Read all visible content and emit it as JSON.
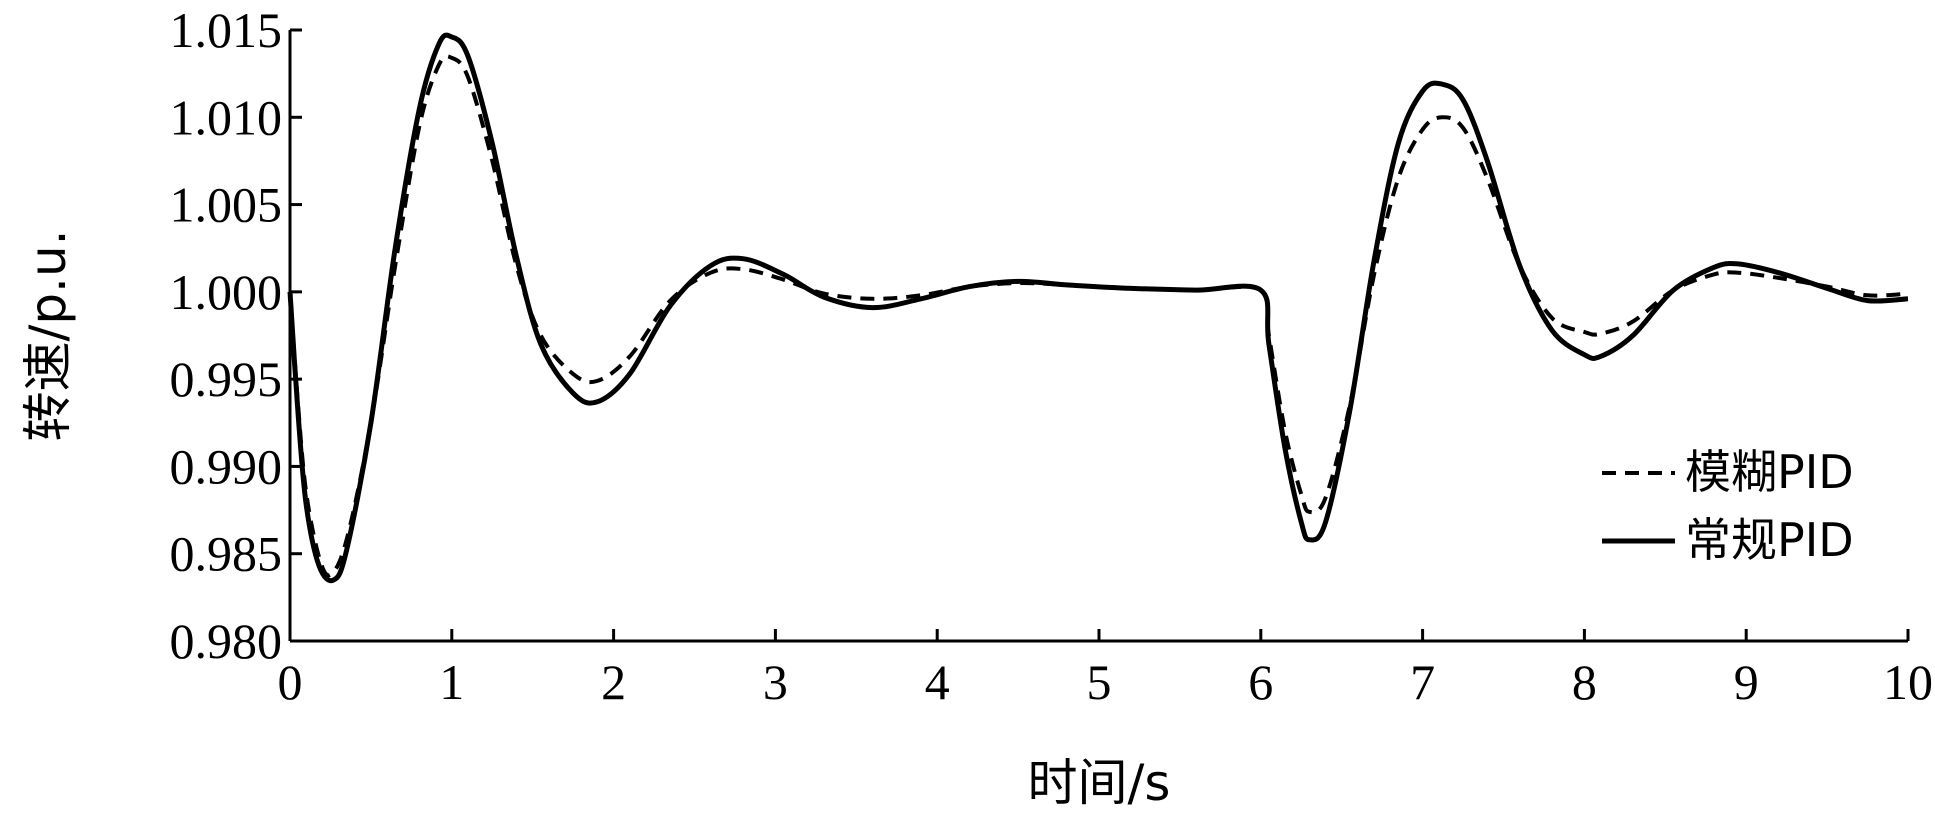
{
  "chart_data": {
    "type": "line",
    "title": "",
    "xlabel": "时间/s",
    "ylabel": "转速/p.u.",
    "xlim": [
      0,
      10
    ],
    "ylim": [
      0.98,
      1.015
    ],
    "xticks": [
      0,
      1,
      2,
      3,
      4,
      5,
      6,
      7,
      8,
      9,
      10
    ],
    "yticks": [
      0.98,
      0.985,
      0.99,
      0.995,
      1.0,
      1.005,
      1.01,
      1.015
    ],
    "xtick_labels": [
      "0",
      "1",
      "2",
      "3",
      "4",
      "5",
      "6",
      "7",
      "8",
      "9",
      "10"
    ],
    "ytick_labels": [
      "0.980",
      "0.985",
      "0.990",
      "0.995",
      "1.000",
      "1.005",
      "1.010",
      "1.015"
    ],
    "grid": false,
    "legend_position": "right",
    "series": [
      {
        "name": "模糊PID",
        "style": "dashed",
        "color": "#000000",
        "points": [
          [
            0.0,
            1.0
          ],
          [
            0.05,
            0.9935
          ],
          [
            0.1,
            0.9885
          ],
          [
            0.18,
            0.9848
          ],
          [
            0.25,
            0.9838
          ],
          [
            0.35,
            0.9858
          ],
          [
            0.5,
            0.9925
          ],
          [
            0.65,
            1.0015
          ],
          [
            0.8,
            1.0095
          ],
          [
            0.92,
            1.013
          ],
          [
            1.0,
            1.0134
          ],
          [
            1.1,
            1.0123
          ],
          [
            1.25,
            1.0075
          ],
          [
            1.4,
            1.0015
          ],
          [
            1.55,
            0.9975
          ],
          [
            1.75,
            0.9953
          ],
          [
            1.9,
            0.9949
          ],
          [
            2.1,
            0.9963
          ],
          [
            2.35,
            0.9995
          ],
          [
            2.6,
            1.0011
          ],
          [
            2.8,
            1.0013
          ],
          [
            3.05,
            1.0007
          ],
          [
            3.3,
            0.9999
          ],
          [
            3.6,
            0.9996
          ],
          [
            3.9,
            0.9998
          ],
          [
            4.2,
            1.0003
          ],
          [
            4.5,
            1.0005
          ],
          [
            4.8,
            1.0004
          ],
          [
            5.2,
            1.0002
          ],
          [
            5.6,
            1.0001
          ],
          [
            6.0,
            1.0001
          ],
          [
            6.05,
            0.9975
          ],
          [
            6.15,
            0.992
          ],
          [
            6.25,
            0.9884
          ],
          [
            6.3,
            0.9874
          ],
          [
            6.4,
            0.9882
          ],
          [
            6.55,
            0.9935
          ],
          [
            6.7,
            1.001
          ],
          [
            6.85,
            1.0065
          ],
          [
            7.0,
            1.0093
          ],
          [
            7.12,
            1.01
          ],
          [
            7.25,
            1.0094
          ],
          [
            7.4,
            1.0065
          ],
          [
            7.6,
            1.0015
          ],
          [
            7.8,
            0.9985
          ],
          [
            8.0,
            0.9977
          ],
          [
            8.1,
            0.9976
          ],
          [
            8.3,
            0.9983
          ],
          [
            8.55,
            1.0001
          ],
          [
            8.8,
            1.001
          ],
          [
            8.95,
            1.0011
          ],
          [
            9.2,
            1.0008
          ],
          [
            9.5,
            1.0003
          ],
          [
            9.75,
            0.9998
          ],
          [
            10.0,
            0.9999
          ]
        ]
      },
      {
        "name": "常规PID",
        "style": "solid",
        "color": "#000000",
        "points": [
          [
            0.0,
            1.0
          ],
          [
            0.05,
            0.993
          ],
          [
            0.1,
            0.9878
          ],
          [
            0.18,
            0.9843
          ],
          [
            0.27,
            0.9835
          ],
          [
            0.35,
            0.9852
          ],
          [
            0.5,
            0.9925
          ],
          [
            0.65,
            1.0025
          ],
          [
            0.8,
            1.0105
          ],
          [
            0.92,
            1.0142
          ],
          [
            1.0,
            1.0146
          ],
          [
            1.1,
            1.0135
          ],
          [
            1.25,
            1.0085
          ],
          [
            1.4,
            1.002
          ],
          [
            1.55,
            0.997
          ],
          [
            1.75,
            0.9942
          ],
          [
            1.9,
            0.9937
          ],
          [
            2.1,
            0.9953
          ],
          [
            2.35,
            0.9992
          ],
          [
            2.6,
            1.0015
          ],
          [
            2.8,
            1.0019
          ],
          [
            3.05,
            1.001
          ],
          [
            3.3,
            0.9997
          ],
          [
            3.6,
            0.9991
          ],
          [
            3.9,
            0.9996
          ],
          [
            4.2,
            1.0003
          ],
          [
            4.5,
            1.0006
          ],
          [
            4.8,
            1.0004
          ],
          [
            5.2,
            1.0002
          ],
          [
            5.6,
            1.0001
          ],
          [
            6.0,
            1.0001
          ],
          [
            6.05,
            0.997
          ],
          [
            6.15,
            0.991
          ],
          [
            6.25,
            0.9868
          ],
          [
            6.3,
            0.9858
          ],
          [
            6.4,
            0.9868
          ],
          [
            6.55,
            0.9932
          ],
          [
            6.7,
            1.0018
          ],
          [
            6.85,
            1.0085
          ],
          [
            7.0,
            1.0115
          ],
          [
            7.12,
            1.0119
          ],
          [
            7.25,
            1.011
          ],
          [
            7.4,
            1.0075
          ],
          [
            7.6,
            1.0015
          ],
          [
            7.8,
            0.9978
          ],
          [
            8.0,
            0.9964
          ],
          [
            8.1,
            0.9963
          ],
          [
            8.3,
            0.9975
          ],
          [
            8.55,
            1.0001
          ],
          [
            8.8,
            1.0014
          ],
          [
            8.95,
            1.0016
          ],
          [
            9.2,
            1.0011
          ],
          [
            9.5,
            1.0002
          ],
          [
            9.75,
            0.9995
          ],
          [
            10.0,
            0.9996
          ]
        ]
      }
    ]
  }
}
